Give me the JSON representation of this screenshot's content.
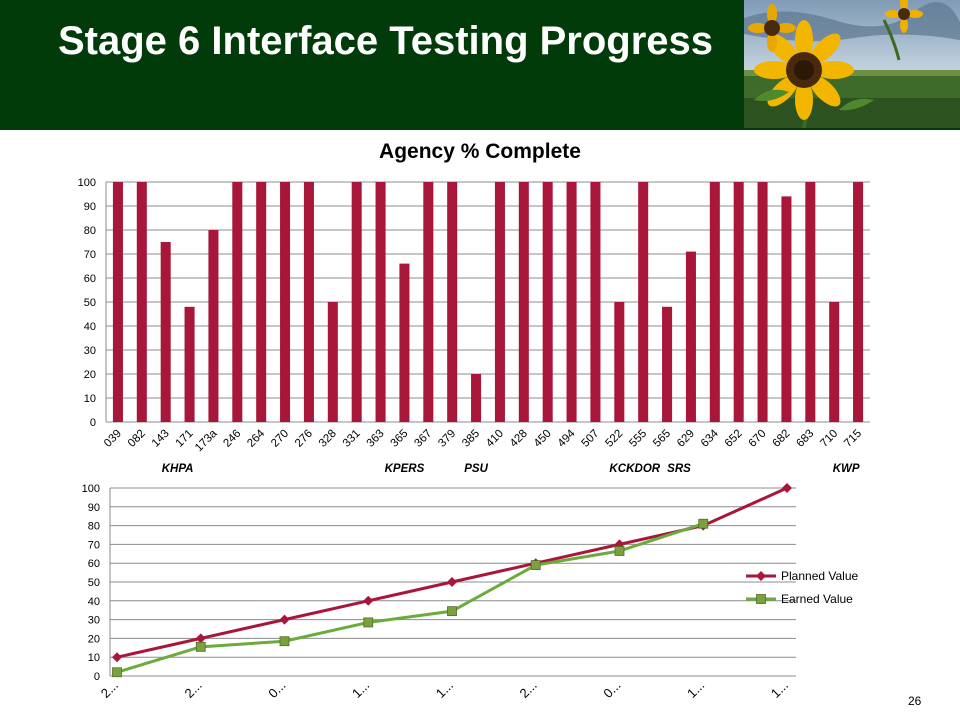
{
  "slide": {
    "title": "Stage 6 Interface Testing Progress",
    "slide_number": "26"
  },
  "colors": {
    "header_bg": "#023b0a",
    "bar": "#a8163a",
    "planned_line": "#a8163a",
    "earned_line": "#6aab3c",
    "earned_marker": "#7ba13c"
  },
  "chart_data": [
    {
      "type": "bar",
      "title": "Agency % Complete",
      "categories": [
        "039",
        "082",
        "143",
        "171",
        "173a",
        "246",
        "264",
        "270",
        "276",
        "328",
        "331",
        "363",
        "365",
        "367",
        "379",
        "385",
        "410",
        "428",
        "450",
        "494",
        "507",
        "522",
        "555",
        "565",
        "629",
        "634",
        "652",
        "670",
        "682",
        "683",
        "710",
        "715"
      ],
      "values": [
        100,
        100,
        75,
        48,
        80,
        100,
        100,
        100,
        100,
        50,
        100,
        100,
        66,
        100,
        100,
        20,
        100,
        100,
        100,
        100,
        100,
        50,
        100,
        48,
        71,
        100,
        100,
        100,
        94,
        100,
        50,
        100
      ],
      "group_labels": [
        "KHPA",
        "KPERS",
        "PSU",
        "KCI",
        "KDOR",
        "SRS",
        "KWP"
      ],
      "ylim": [
        0,
        100
      ],
      "yticks": [
        0,
        10,
        20,
        30,
        40,
        50,
        60,
        70,
        80,
        90,
        100
      ],
      "grid": true,
      "legend": "none"
    },
    {
      "type": "line",
      "categories": [
        "2...",
        "2...",
        "0...",
        "1...",
        "1...",
        "2...",
        "0...",
        "1...",
        "1..."
      ],
      "series": [
        {
          "name": "Planned Value",
          "values": [
            10,
            20,
            30,
            40,
            50,
            60,
            70,
            80,
            100
          ]
        },
        {
          "name": "Earned Value",
          "values": [
            2,
            15.5,
            18.5,
            28.5,
            34.5,
            59,
            66.5,
            81,
            null
          ]
        }
      ],
      "ylim": [
        0,
        100
      ],
      "yticks": [
        0,
        10,
        20,
        30,
        40,
        50,
        60,
        70,
        80,
        90,
        100
      ],
      "grid": true,
      "legend": "right"
    }
  ]
}
